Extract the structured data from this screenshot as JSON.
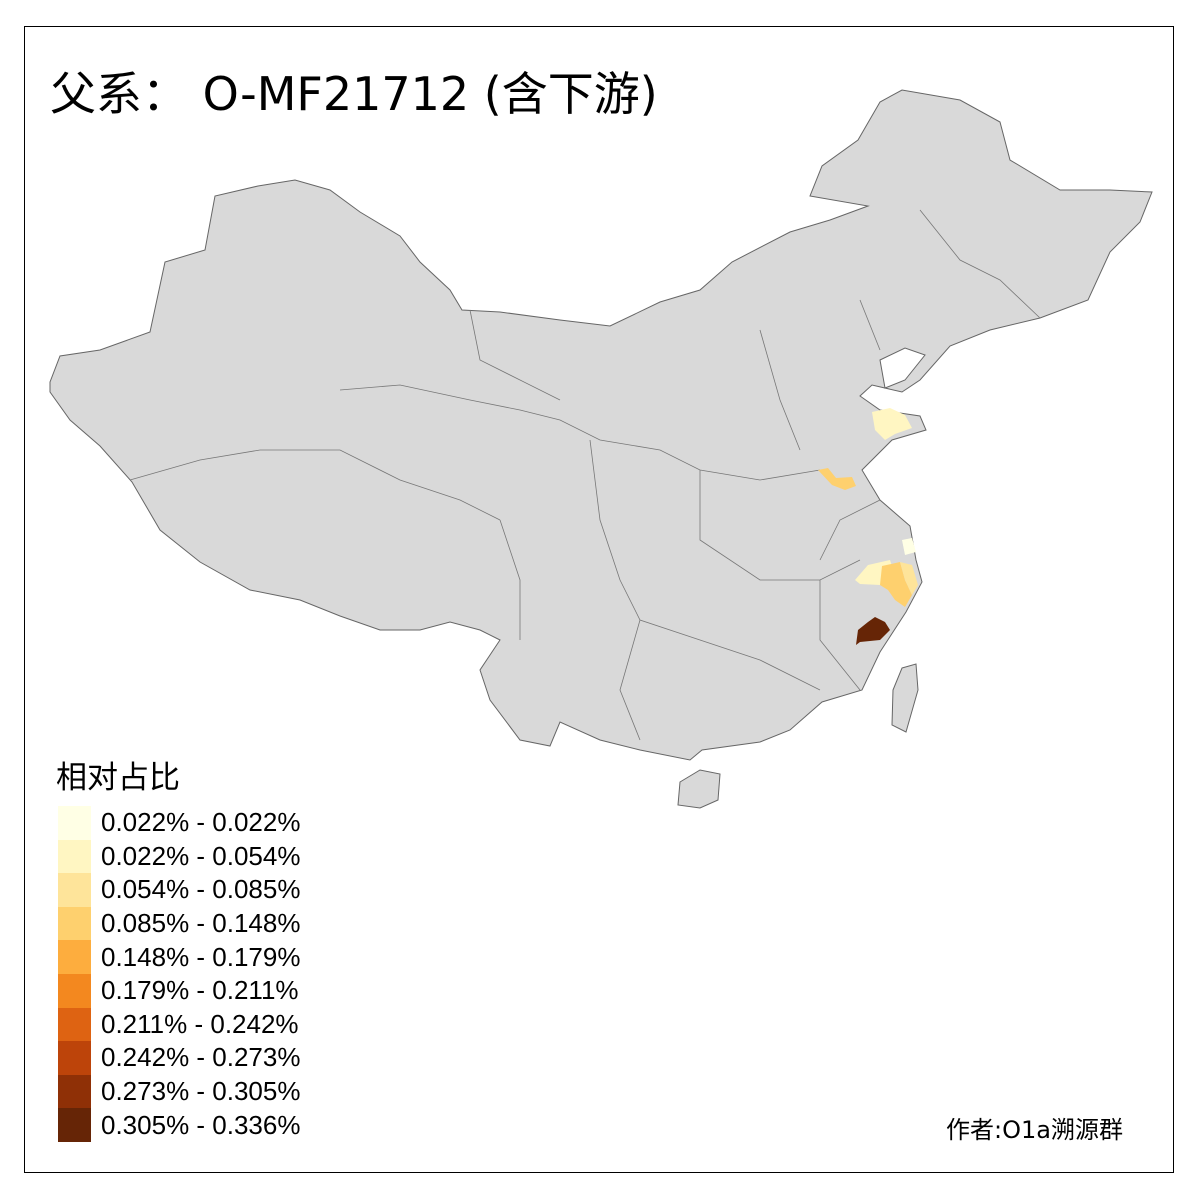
{
  "title": "父系： O-MF21712 (含下游)",
  "legend": {
    "title": "相对占比",
    "items": [
      {
        "label": "0.022% - 0.022%",
        "color": "#FFFFE5"
      },
      {
        "label": "0.022% - 0.054%",
        "color": "#FFF6C2"
      },
      {
        "label": "0.054% - 0.085%",
        "color": "#FEE49A"
      },
      {
        "label": "0.085% - 0.148%",
        "color": "#FED06E"
      },
      {
        "label": "0.148% - 0.179%",
        "color": "#FDAD3E"
      },
      {
        "label": "0.179% - 0.211%",
        "color": "#F3881F"
      },
      {
        "label": "0.211% - 0.242%",
        "color": "#DE6312"
      },
      {
        "label": "0.242% - 0.273%",
        "color": "#BD440A"
      },
      {
        "label": "0.273% - 0.305%",
        "color": "#8F3006"
      },
      {
        "label": "0.305% - 0.336%",
        "color": "#662506"
      }
    ]
  },
  "map": {
    "base_color": "#D9D9D9",
    "border_color": "#666666",
    "highlighted_regions": [
      {
        "area": "Shandong east coast",
        "class": 1
      },
      {
        "area": "Northern Jiangsu (Xuzhou)",
        "class": 3
      },
      {
        "area": "Shanghai",
        "class": 0
      },
      {
        "area": "Northern Zhejiang west",
        "class": 1
      },
      {
        "area": "Central Zhejiang",
        "class": 3
      },
      {
        "area": "Eastern Zhejiang",
        "class": 2
      },
      {
        "area": "Fujian (Fuzhou)",
        "class": 9
      }
    ]
  },
  "author": "作者:O1a溯源群"
}
